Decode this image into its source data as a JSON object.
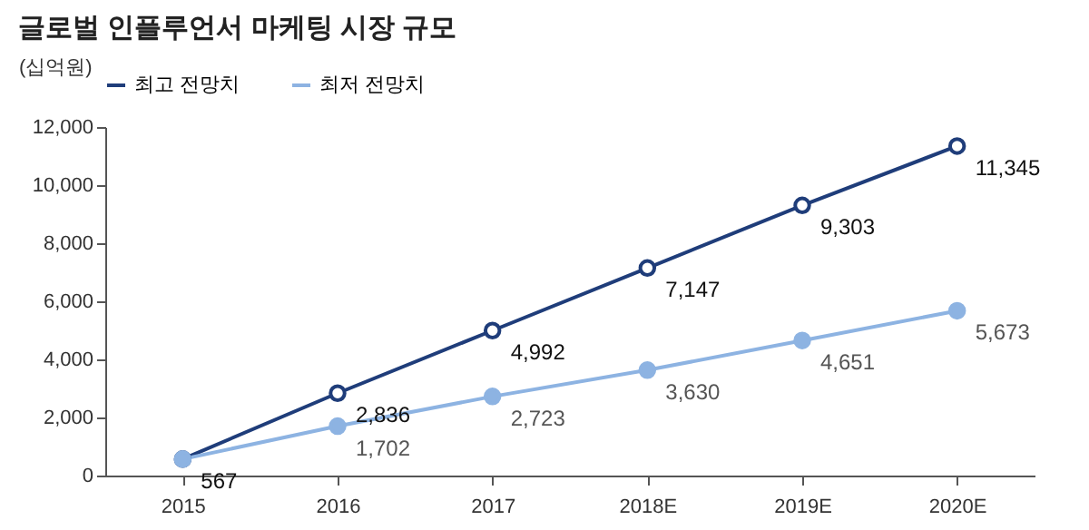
{
  "chart_data": {
    "type": "line",
    "title": "글로벌 인플루언서 마케팅 시장 규모",
    "ylabel": "(십억원)",
    "categories": [
      "2015",
      "2016",
      "2017",
      "2018E",
      "2019E",
      "2020E"
    ],
    "series": [
      {
        "name": "최고 전망치",
        "color": "#1f3d7a",
        "values": [
          567,
          2836,
          4992,
          7147,
          9303,
          11345
        ],
        "value_labels": [
          "567",
          "2,836",
          "4,992",
          "7,147",
          "9,303",
          "11,345"
        ]
      },
      {
        "name": "최저 전망치",
        "color": "#8db3e2",
        "values": [
          567,
          1702,
          2723,
          3630,
          4651,
          5673
        ],
        "value_labels": [
          null,
          "1,702",
          "2,723",
          "3,630",
          "4,651",
          "5,673"
        ]
      }
    ],
    "ylim": [
      0,
      12000
    ],
    "yticks": [
      0,
      {
        "value": 2000,
        "label": "2,000"
      },
      {
        "value": 4000,
        "label": "4,000"
      },
      {
        "value": 6000,
        "label": "6,000"
      },
      {
        "value": 8000,
        "label": "8,000"
      },
      {
        "value": 10000,
        "label": "10,000"
      },
      {
        "value": 12000,
        "label": "12,000"
      }
    ],
    "grid": false,
    "legend": "top",
    "marker": "circle"
  }
}
